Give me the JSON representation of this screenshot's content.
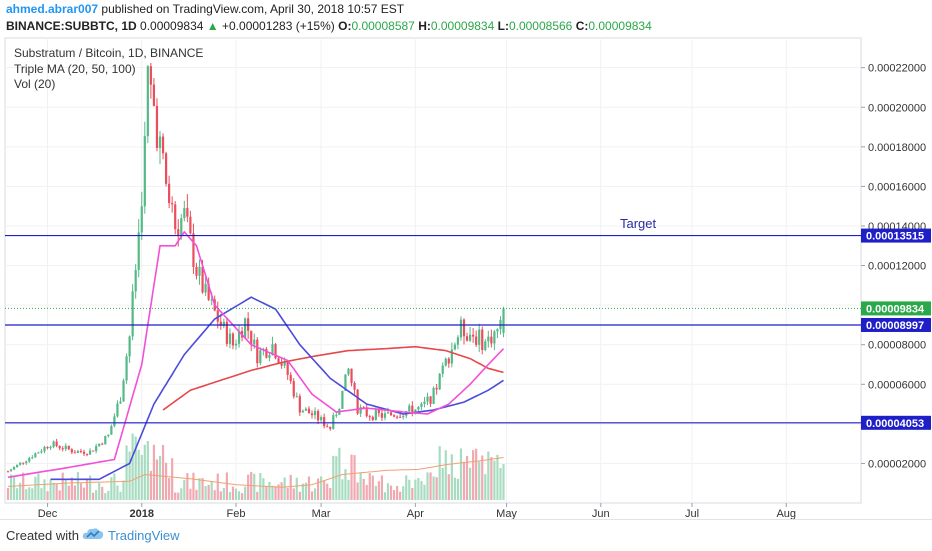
{
  "header": {
    "author": "ahmed.abrar007",
    "published": "published on TradingView.com, April 30, 2018 10:57 EST",
    "symbol": "BINANCE:SUBBTC, 1D",
    "last": "0.00009834",
    "change_arrow": "▲",
    "change": "+0.00001283 (+15%)",
    "o_label": "O:",
    "o_value": "0.00008587",
    "h_label": "H:",
    "h_value": "0.00009834",
    "l_label": "L:",
    "l_value": "0.00008566",
    "c_label": "C:",
    "c_value": "0.00009834"
  },
  "legend": {
    "title": "Substratum / Bitcoin, 1D, BINANCE",
    "ma": "Triple MA (20, 50, 100)",
    "vol": "Vol (20)"
  },
  "annotation": {
    "target": "Target"
  },
  "price_tags": [
    "0.00013515",
    "0.00009834",
    "0.00008997",
    "0.00004053"
  ],
  "footer": {
    "created_with": "Created with",
    "brand": "TradingView"
  },
  "colors": {
    "up": "#53b987",
    "down": "#eb4d5c",
    "ma20": "#f250d6",
    "ma50": "#4b4bdc",
    "ma100": "#e8474a",
    "hline": "#1f1fc8",
    "vol_ma": "#f0a070",
    "last_price": "#2ba84a"
  },
  "chart_data": {
    "type": "candlestick",
    "title": "Substratum / Bitcoin, 1D, BINANCE",
    "ylim": [
      0,
      0.000235
    ],
    "y_ticks": [
      "0.00002000",
      "0.00004000",
      "0.00006000",
      "0.00008000",
      "0.00010000",
      "0.00012000",
      "0.00014000",
      "0.00016000",
      "0.00018000",
      "0.00020000",
      "0.00022000"
    ],
    "x_ticks": [
      {
        "label": "Dec",
        "day": 13
      },
      {
        "label": "2018",
        "day": 44
      },
      {
        "label": "Feb",
        "day": 75
      },
      {
        "label": "Mar",
        "day": 103
      },
      {
        "label": "Apr",
        "day": 134
      },
      {
        "label": "May",
        "day": 164
      },
      {
        "label": "Jun",
        "day": 195
      },
      {
        "label": "Jul",
        "day": 225
      },
      {
        "label": "Aug",
        "day": 256
      }
    ],
    "horizontal_lines": [
      0.00013515,
      8.997e-05,
      4.053e-05
    ],
    "last_price": 9.834e-05,
    "target_label": "Target",
    "anchors": [
      [
        0,
        1.6e-05
      ],
      [
        8,
        2.4e-05
      ],
      [
        14,
        3e-05
      ],
      [
        22,
        2.6e-05
      ],
      [
        27,
        2.6e-05
      ],
      [
        33,
        3.4e-05
      ],
      [
        37,
        5.4e-05
      ],
      [
        40,
        8.5e-05
      ],
      [
        43,
        0.000136
      ],
      [
        45,
        0.00018
      ],
      [
        46,
        0.000215
      ],
      [
        48,
        0.0002
      ],
      [
        50,
        0.00018
      ],
      [
        52,
        0.00016
      ],
      [
        55,
        0.00014
      ],
      [
        58,
        0.000145
      ],
      [
        62,
        0.000118
      ],
      [
        65,
        0.000105
      ],
      [
        70,
        9e-05
      ],
      [
        74,
        8e-05
      ],
      [
        78,
        9.2e-05
      ],
      [
        82,
        7.5e-05
      ],
      [
        87,
        8e-05
      ],
      [
        92,
        6.5e-05
      ],
      [
        96,
        4.8e-05
      ],
      [
        101,
        4.4e-05
      ],
      [
        106,
        3.8e-05
      ],
      [
        109,
        5e-05
      ],
      [
        112,
        6.7e-05
      ],
      [
        115,
        4.8e-05
      ],
      [
        118,
        4.5e-05
      ],
      [
        124,
        4.4e-05
      ],
      [
        130,
        4.6e-05
      ],
      [
        136,
        4.8e-05
      ],
      [
        140,
        5.5e-05
      ],
      [
        145,
        7.5e-05
      ],
      [
        149,
        8.8e-05
      ],
      [
        153,
        8.5e-05
      ],
      [
        157,
        8.1e-05
      ],
      [
        160,
        8.6e-05
      ],
      [
        162,
        8.9e-05
      ],
      [
        163,
        9.834e-05
      ]
    ],
    "ma20_anchors": [
      [
        0,
        1.3e-05
      ],
      [
        20,
        1.8e-05
      ],
      [
        35,
        2.2e-05
      ],
      [
        44,
        7e-05
      ],
      [
        50,
        0.00013
      ],
      [
        55,
        0.00013
      ],
      [
        58,
        0.000137
      ],
      [
        62,
        0.00013
      ],
      [
        68,
        0.0001
      ],
      [
        80,
        8e-05
      ],
      [
        92,
        7.2e-05
      ],
      [
        100,
        5.5e-05
      ],
      [
        108,
        4.6e-05
      ],
      [
        118,
        4.8e-05
      ],
      [
        130,
        4.6e-05
      ],
      [
        138,
        4.5e-05
      ],
      [
        145,
        5e-05
      ],
      [
        152,
        6e-05
      ],
      [
        158,
        7e-05
      ],
      [
        163,
        7.8e-05
      ]
    ],
    "ma50_anchors": [
      [
        14,
        1.2e-05
      ],
      [
        30,
        1.2e-05
      ],
      [
        40,
        2e-05
      ],
      [
        48,
        5e-05
      ],
      [
        58,
        7.5e-05
      ],
      [
        68,
        9.3e-05
      ],
      [
        80,
        0.000104
      ],
      [
        88,
        9.8e-05
      ],
      [
        96,
        8e-05
      ],
      [
        106,
        6.3e-05
      ],
      [
        118,
        5e-05
      ],
      [
        130,
        4.5e-05
      ],
      [
        140,
        4.7e-05
      ],
      [
        150,
        5.1e-05
      ],
      [
        158,
        5.7e-05
      ],
      [
        163,
        6.2e-05
      ]
    ],
    "ma100_anchors": [
      [
        51,
        4.7e-05
      ],
      [
        60,
        5.7e-05
      ],
      [
        70,
        6.2e-05
      ],
      [
        80,
        6.7e-05
      ],
      [
        90,
        7.1e-05
      ],
      [
        100,
        7.4e-05
      ],
      [
        112,
        7.7e-05
      ],
      [
        124,
        7.8e-05
      ],
      [
        134,
        7.9e-05
      ],
      [
        144,
        7.7e-05
      ],
      [
        152,
        7.3e-05
      ],
      [
        158,
        6.8e-05
      ],
      [
        163,
        6.6e-05
      ]
    ],
    "volume_ma_anchors": [
      [
        0,
        0.16
      ],
      [
        20,
        0.2
      ],
      [
        40,
        0.22
      ],
      [
        45,
        0.3
      ],
      [
        60,
        0.25
      ],
      [
        75,
        0.18
      ],
      [
        90,
        0.15
      ],
      [
        100,
        0.18
      ],
      [
        110,
        0.3
      ],
      [
        125,
        0.35
      ],
      [
        135,
        0.36
      ],
      [
        145,
        0.42
      ],
      [
        155,
        0.46
      ],
      [
        163,
        0.5
      ]
    ]
  }
}
